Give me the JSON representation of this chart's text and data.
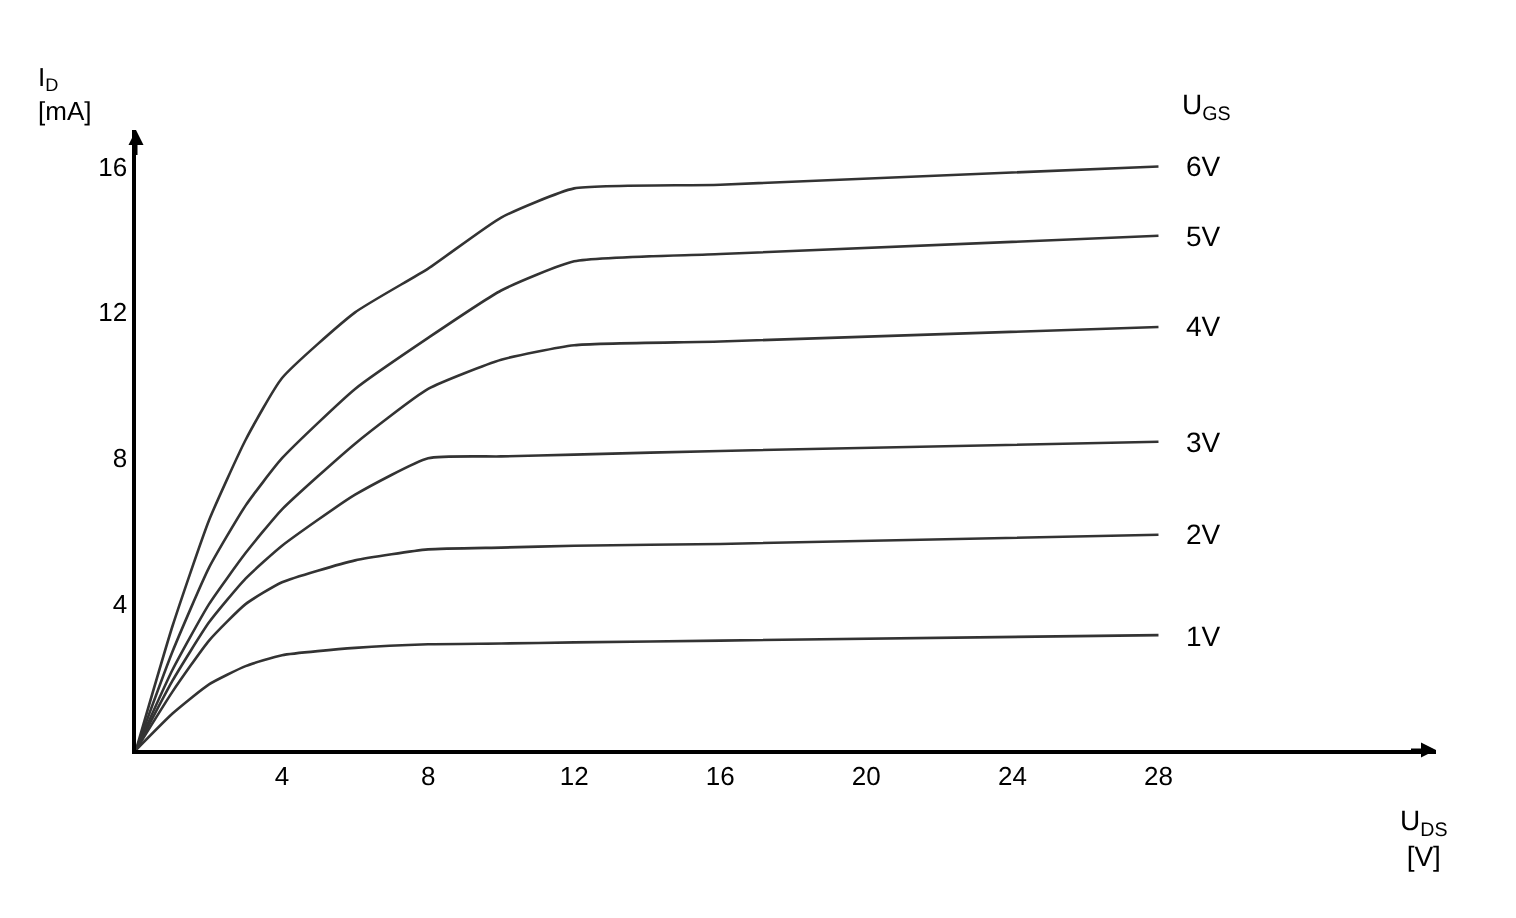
{
  "chart_data": {
    "type": "line",
    "xlabel": "U$_{DS}$ [V]",
    "ylabel": "I$_{D}$ [mA]",
    "legend_title": "U$_{GS}$",
    "x": [
      0,
      1,
      2,
      3,
      4,
      6,
      8,
      10,
      12,
      16,
      28
    ],
    "series": [
      {
        "name": "6V",
        "color": "#333333",
        "values": [
          0,
          3.4,
          6.3,
          8.5,
          10.2,
          12.0,
          13.2,
          14.6,
          15.4,
          15.5,
          16.0
        ]
      },
      {
        "name": "5V",
        "color": "#333333",
        "values": [
          0,
          2.7,
          5.0,
          6.7,
          8.0,
          9.9,
          11.3,
          12.6,
          13.4,
          13.6,
          14.1
        ]
      },
      {
        "name": "4V",
        "color": "#333333",
        "values": [
          0,
          2.2,
          4.0,
          5.4,
          6.6,
          8.4,
          9.9,
          10.7,
          11.1,
          11.2,
          11.6
        ]
      },
      {
        "name": "3V",
        "color": "#333333",
        "values": [
          0,
          1.9,
          3.5,
          4.7,
          5.6,
          7.0,
          8.0,
          8.05,
          8.1,
          8.2,
          8.45
        ]
      },
      {
        "name": "2V",
        "color": "#333333",
        "values": [
          0,
          1.6,
          3.0,
          4.0,
          4.6,
          5.2,
          5.5,
          5.55,
          5.6,
          5.65,
          5.9
        ]
      },
      {
        "name": "1V",
        "color": "#333333",
        "values": [
          0,
          1.0,
          1.8,
          2.3,
          2.6,
          2.8,
          2.9,
          2.92,
          2.95,
          3.0,
          3.15
        ]
      }
    ],
    "xlim": [
      0,
      35.6
    ],
    "ylim": [
      0,
      17
    ],
    "xticks": [
      4,
      8,
      12,
      16,
      20,
      24,
      28
    ],
    "yticks": [
      4,
      8,
      12,
      16
    ],
    "legend": false,
    "marker": "none",
    "line_style": "solid"
  }
}
